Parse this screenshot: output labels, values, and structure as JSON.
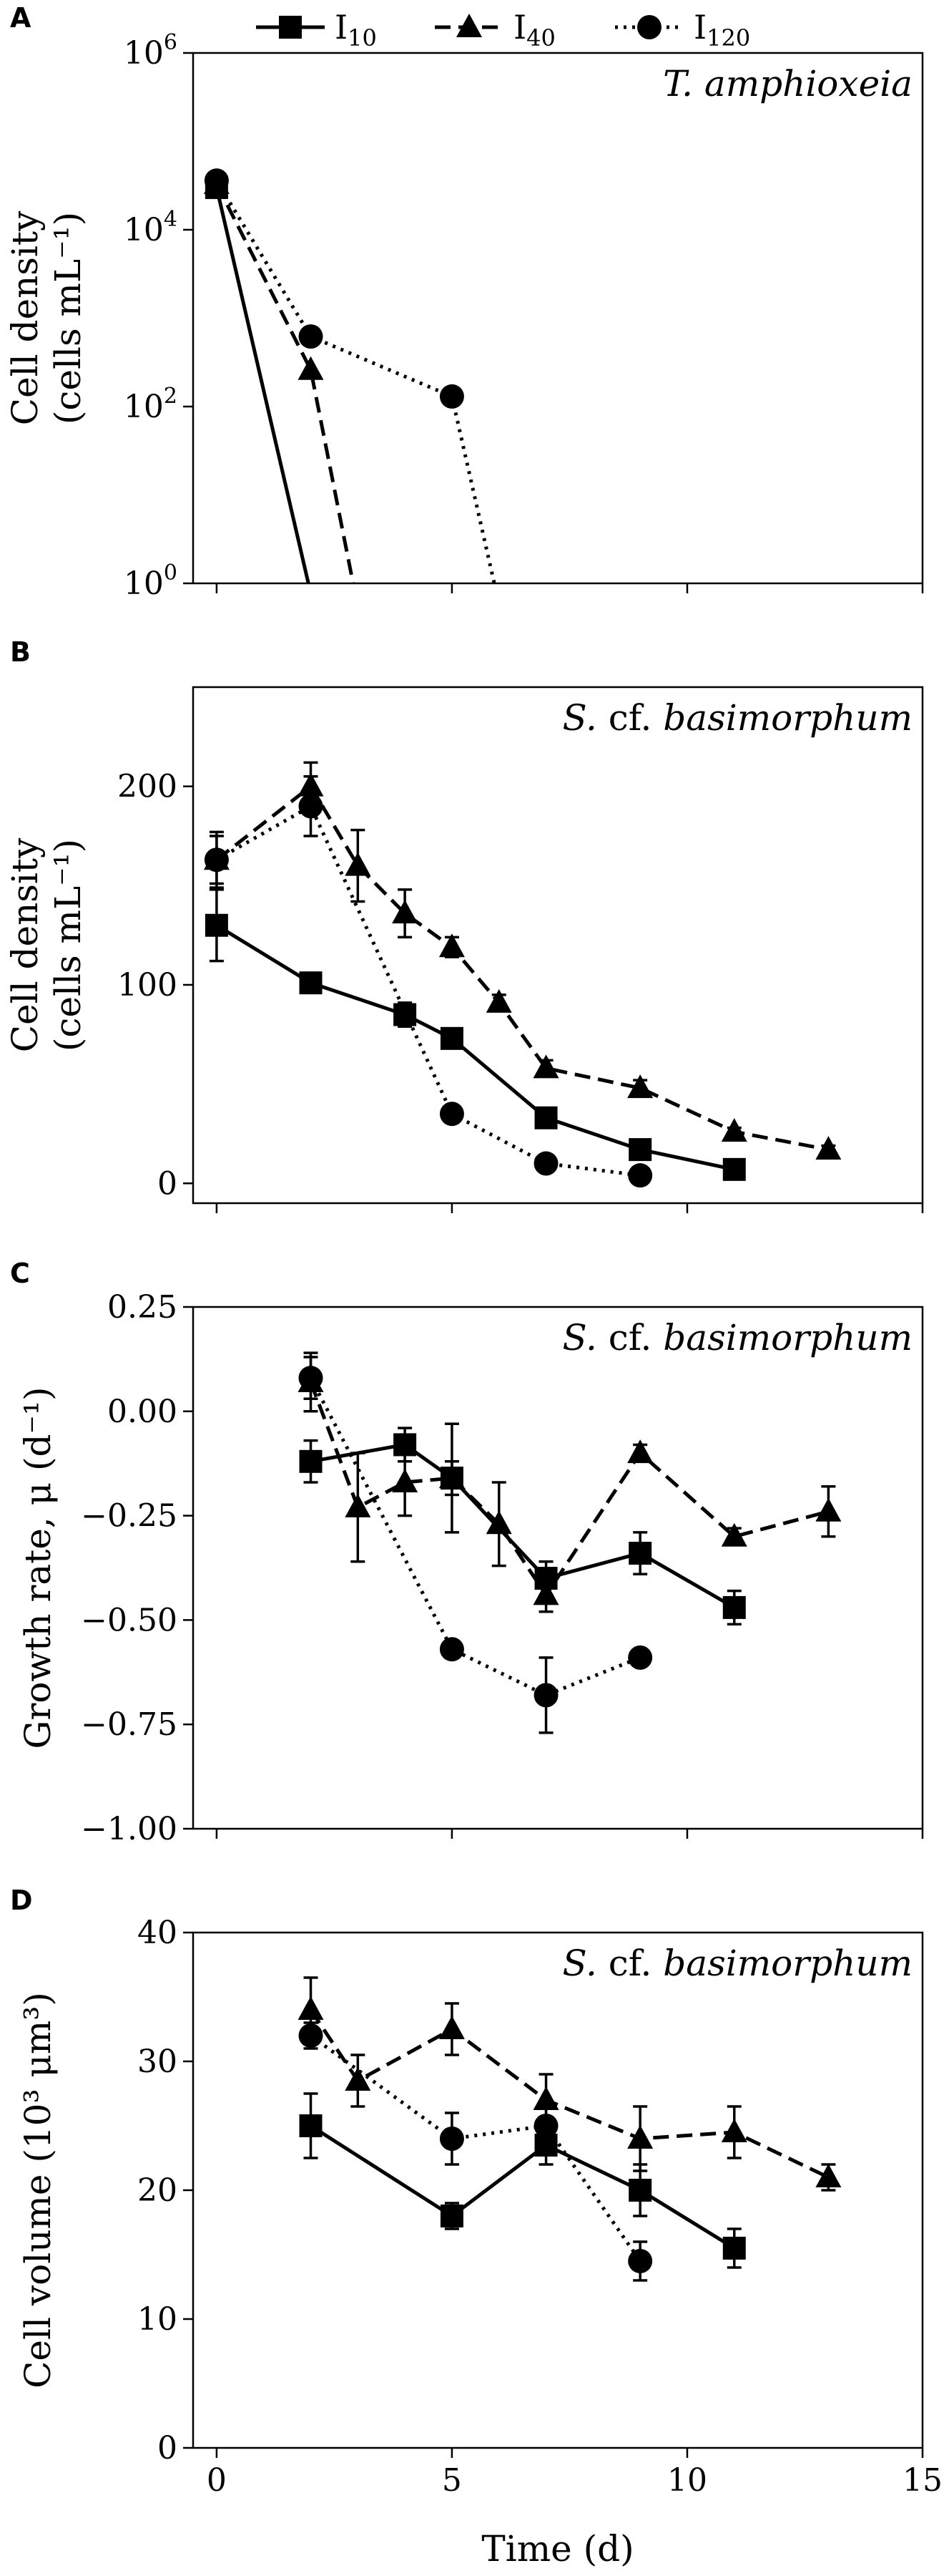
{
  "legend": {
    "entries": [
      {
        "name": "I",
        "sub": "10",
        "marker": "square",
        "dash": "solid"
      },
      {
        "name": "I",
        "sub": "40",
        "marker": "triangle",
        "dash": "dashed"
      },
      {
        "name": "I",
        "sub": "120",
        "marker": "circle",
        "dash": "dotted"
      }
    ]
  },
  "chart_data": [
    {
      "panel": "A",
      "type": "line",
      "yscale": "log",
      "species_label": {
        "italic": "T. amphioxeia",
        "rest": ""
      },
      "ylabel": [
        "Cell density",
        "(cells mL⁻¹)"
      ],
      "xlim": [
        -0.5,
        15
      ],
      "ylim": [
        1,
        1000000
      ],
      "yticks": [
        {
          "v": 1,
          "base": "10",
          "exp": "0"
        },
        {
          "v": 100,
          "base": "10",
          "exp": "2"
        },
        {
          "v": 10000,
          "base": "10",
          "exp": "4"
        },
        {
          "v": 1000000,
          "base": "10",
          "exp": "6"
        }
      ],
      "series": [
        {
          "name": "I10",
          "marker": "square",
          "dash": "solid",
          "x": [
            0,
            1.95
          ],
          "y": [
            30000,
            1
          ],
          "err": [
            0,
            0
          ],
          "marker_count": 1
        },
        {
          "name": "I40",
          "marker": "triangle",
          "dash": "dashed",
          "x": [
            0,
            2,
            2.9
          ],
          "y": [
            33000,
            260,
            1
          ],
          "err": [
            0,
            0,
            0
          ],
          "marker_count": 2
        },
        {
          "name": "I120",
          "marker": "circle",
          "dash": "dotted",
          "x": [
            0,
            2,
            5,
            5.9
          ],
          "y": [
            36000,
            620,
            130,
            1
          ],
          "err": [
            0,
            0,
            0,
            0
          ],
          "marker_count": 3
        }
      ]
    },
    {
      "panel": "B",
      "type": "line",
      "yscale": "linear",
      "species_label": {
        "italic": "S.",
        "rest": " cf. ",
        "italic2": "basimorphum"
      },
      "ylabel": [
        "Cell density",
        "(cells mL⁻¹)"
      ],
      "xlim": [
        -0.5,
        15
      ],
      "ylim": [
        -10,
        250
      ],
      "yticks": [
        {
          "v": 0,
          "label": "0"
        },
        {
          "v": 100,
          "label": "100"
        },
        {
          "v": 200,
          "label": "200"
        }
      ],
      "series": [
        {
          "name": "I10",
          "marker": "square",
          "dash": "solid",
          "x": [
            0,
            2,
            4,
            5,
            7,
            9,
            11
          ],
          "y": [
            130,
            101,
            85,
            73,
            33,
            17,
            7
          ],
          "err": [
            18,
            3,
            6,
            3,
            3,
            4,
            3
          ]
        },
        {
          "name": "I40",
          "marker": "triangle",
          "dash": "dashed",
          "x": [
            0,
            2,
            3,
            4,
            5,
            6,
            7,
            9,
            11,
            13
          ],
          "y": [
            163,
            200,
            160,
            136,
            119,
            91,
            58,
            48,
            26,
            17
          ],
          "err": [
            12,
            12,
            18,
            12,
            5,
            4,
            4,
            4,
            2,
            2
          ]
        },
        {
          "name": "I120",
          "marker": "circle",
          "dash": "dotted",
          "x": [
            0,
            2,
            5,
            7,
            9
          ],
          "y": [
            163,
            190,
            35,
            10,
            4
          ],
          "err": [
            14,
            15,
            2,
            1,
            1
          ]
        }
      ]
    },
    {
      "panel": "C",
      "type": "line",
      "yscale": "linear",
      "species_label": {
        "italic": "S.",
        "rest": " cf. ",
        "italic2": "basimorphum"
      },
      "ylabel": [
        "Growth rate, μ (d⁻¹)"
      ],
      "xlim": [
        -0.5,
        15
      ],
      "ylim": [
        -1.0,
        0.25
      ],
      "yticks": [
        {
          "v": 0.25,
          "label": "0.25"
        },
        {
          "v": 0,
          "label": "0.00"
        },
        {
          "v": -0.25,
          "label": "−0.25"
        },
        {
          "v": -0.5,
          "label": "−0.50"
        },
        {
          "v": -0.75,
          "label": "−0.75"
        },
        {
          "v": -1.0,
          "label": "−1.00"
        }
      ],
      "series": [
        {
          "name": "I10",
          "marker": "square",
          "dash": "solid",
          "x": [
            2,
            4,
            5,
            7,
            9,
            11
          ],
          "y": [
            -0.12,
            -0.08,
            -0.16,
            -0.4,
            -0.34,
            -0.47
          ],
          "err": [
            0.05,
            0.04,
            0.04,
            0.04,
            0.05,
            0.04
          ]
        },
        {
          "name": "I40",
          "marker": "triangle",
          "dash": "dashed",
          "x": [
            2,
            3,
            4,
            5,
            6,
            7,
            9,
            11,
            13
          ],
          "y": [
            0.07,
            -0.23,
            -0.17,
            -0.16,
            -0.27,
            -0.44,
            -0.1,
            -0.3,
            -0.24
          ],
          "err": [
            0.07,
            0.13,
            0.08,
            0.13,
            0.1,
            0.04,
            0.02,
            0.02,
            0.06
          ]
        },
        {
          "name": "I120",
          "marker": "circle",
          "dash": "dotted",
          "x": [
            2,
            5,
            7,
            9
          ],
          "y": [
            0.08,
            -0.57,
            -0.68,
            -0.59
          ],
          "err": [
            0.05,
            0.02,
            0.09,
            0.02
          ]
        }
      ]
    },
    {
      "panel": "D",
      "type": "line",
      "yscale": "linear",
      "species_label": {
        "italic": "S.",
        "rest": " cf. ",
        "italic2": "basimorphum"
      },
      "ylabel": [
        "Cell volume (10³ μm³)"
      ],
      "xlabel": "Time (d)",
      "xlim": [
        -0.5,
        15
      ],
      "ylim": [
        0,
        40
      ],
      "xticks": [
        {
          "v": 0,
          "label": "0"
        },
        {
          "v": 5,
          "label": "5"
        },
        {
          "v": 10,
          "label": "10"
        },
        {
          "v": 15,
          "label": "15"
        }
      ],
      "yticks": [
        {
          "v": 0,
          "label": "0"
        },
        {
          "v": 10,
          "label": "10"
        },
        {
          "v": 20,
          "label": "20"
        },
        {
          "v": 30,
          "label": "30"
        },
        {
          "v": 40,
          "label": "40"
        }
      ],
      "series": [
        {
          "name": "I10",
          "marker": "square",
          "dash": "solid",
          "x": [
            2,
            5,
            7,
            9,
            11
          ],
          "y": [
            25,
            18,
            23.5,
            20,
            15.5
          ],
          "err": [
            2.5,
            1,
            1.5,
            2,
            1.5
          ]
        },
        {
          "name": "I40",
          "marker": "triangle",
          "dash": "dashed",
          "x": [
            2,
            3,
            5,
            7,
            9,
            11,
            13
          ],
          "y": [
            34,
            28.5,
            32.5,
            27,
            24,
            24.5,
            21
          ],
          "err": [
            2.5,
            2,
            2,
            2,
            2.5,
            2,
            1
          ]
        },
        {
          "name": "I120",
          "marker": "circle",
          "dash": "dotted",
          "x": [
            2,
            5,
            7,
            9
          ],
          "y": [
            32,
            24,
            25,
            14.5
          ],
          "err": [
            1,
            2,
            1.5,
            1.5
          ]
        }
      ]
    }
  ]
}
